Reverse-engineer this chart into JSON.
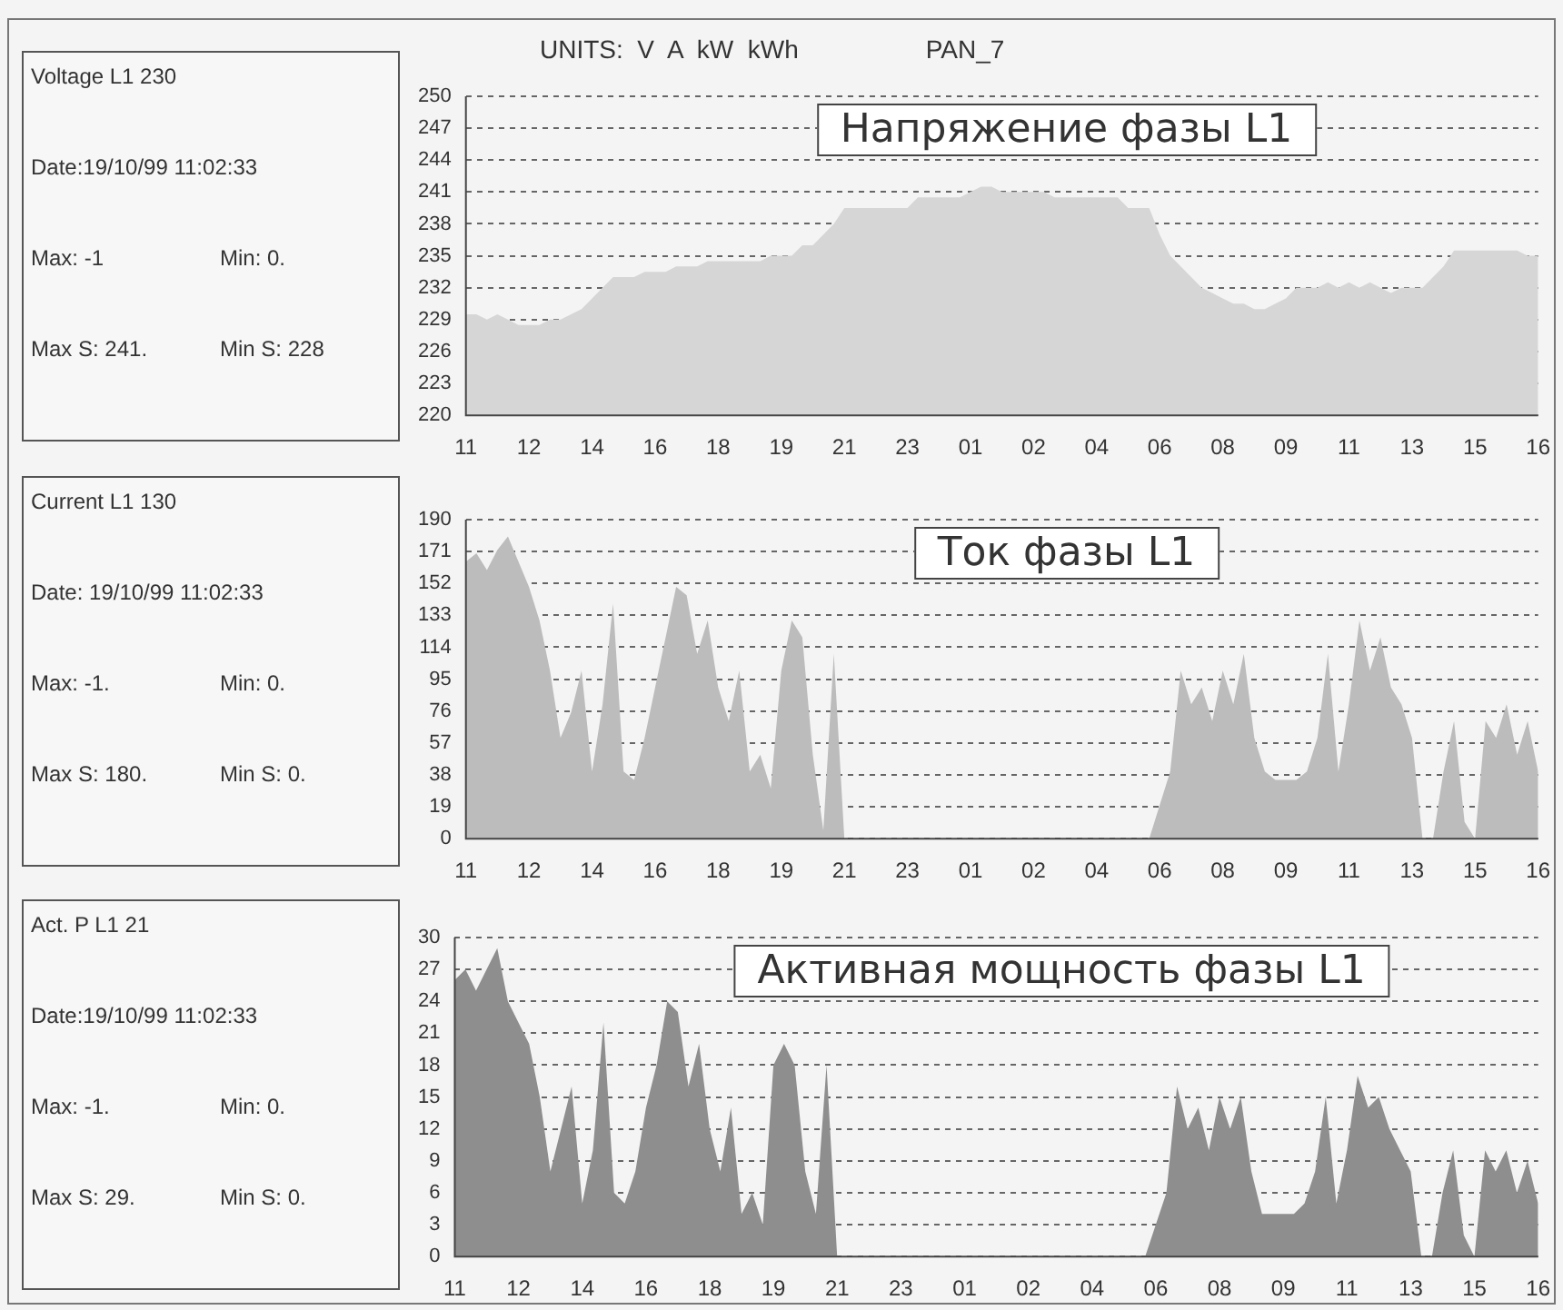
{
  "chart_data": [
    {
      "type": "other",
      "title": "Voltage L1 230",
      "annotations": [
        "Date:19/10/99  11:02:33",
        "Max: -1",
        "Min: 0.",
        "Max S: 241.",
        "Min S: 228"
      ]
    },
    {
      "type": "area",
      "title": "Напряжение фазы L1",
      "annotations": [
        "UNITS:  V  A  kW  kWh",
        "PAN_7"
      ],
      "categories": [
        "11",
        null,
        null,
        null,
        null,
        null,
        "12",
        null,
        null,
        null,
        null,
        null,
        "14",
        null,
        null,
        null,
        null,
        null,
        "16",
        null,
        null,
        null,
        null,
        null,
        "18",
        null,
        null,
        null,
        null,
        null,
        "19",
        null,
        null,
        null,
        null,
        null,
        "21",
        null,
        null,
        null,
        null,
        null,
        "23",
        null,
        null,
        null,
        null,
        null,
        "01",
        null,
        null,
        null,
        null,
        null,
        "02",
        null,
        null,
        null,
        null,
        null,
        "04",
        null,
        null,
        null,
        null,
        null,
        "06",
        null,
        null,
        null,
        null,
        null,
        "08",
        null,
        null,
        null,
        null,
        null,
        "09",
        null,
        null,
        null,
        null,
        null,
        "11",
        null,
        null,
        null,
        null,
        null,
        "13",
        null,
        null,
        null,
        null,
        null,
        "15",
        null,
        null,
        null,
        null,
        null,
        "16"
      ],
      "series": [
        {
          "color": "#d6d6d6",
          "values": [
            229.5,
            229.5,
            229,
            229.5,
            229,
            228.5,
            228.5,
            228.5,
            229,
            229,
            229.5,
            230,
            231,
            232,
            233,
            233,
            233,
            233.5,
            233.5,
            233.5,
            234,
            234,
            234,
            234.5,
            234.5,
            234.5,
            234.5,
            234.5,
            234.5,
            235,
            235,
            235,
            236,
            236,
            237,
            238,
            239.5,
            239.5,
            239.5,
            239.5,
            239.5,
            239.5,
            239.5,
            240.5,
            240.5,
            240.5,
            240.5,
            240.5,
            241,
            241.5,
            241.5,
            241,
            241,
            241,
            241,
            241,
            240.5,
            240.5,
            240.5,
            240.5,
            240.5,
            240.5,
            240.5,
            239.5,
            239.5,
            239.5,
            237,
            235,
            234,
            233,
            232,
            231.5,
            231,
            230.5,
            230.5,
            230,
            230,
            230.5,
            231,
            232,
            232,
            232,
            232.5,
            232,
            232.5,
            232,
            232.5,
            232,
            231.5,
            232,
            232,
            232,
            233,
            234,
            235.5,
            235.5,
            235.5,
            235.5,
            235.5,
            235.5,
            235.5,
            235,
            235
          ]
        }
      ],
      "ylim": [
        220,
        250
      ],
      "yticks": [
        220,
        223,
        226,
        229,
        232,
        235,
        238,
        241,
        244,
        247,
        250
      ],
      "grid": "y"
    },
    {
      "type": "other",
      "title": "Current L1 130",
      "annotations": [
        "Date: 19/10/99  11:02:33",
        "Max: -1.",
        "Min: 0.",
        "Max S: 180.",
        "Min S: 0."
      ]
    },
    {
      "type": "area",
      "title": "Ток фазы L1",
      "categories": [
        "11",
        null,
        null,
        null,
        null,
        null,
        "12",
        null,
        null,
        null,
        null,
        null,
        "14",
        null,
        null,
        null,
        null,
        null,
        "16",
        null,
        null,
        null,
        null,
        null,
        "18",
        null,
        null,
        null,
        null,
        null,
        "19",
        null,
        null,
        null,
        null,
        null,
        "21",
        null,
        null,
        null,
        null,
        null,
        "23",
        null,
        null,
        null,
        null,
        null,
        "01",
        null,
        null,
        null,
        null,
        null,
        "02",
        null,
        null,
        null,
        null,
        null,
        "04",
        null,
        null,
        null,
        null,
        null,
        "06",
        null,
        null,
        null,
        null,
        null,
        "08",
        null,
        null,
        null,
        null,
        null,
        "09",
        null,
        null,
        null,
        null,
        null,
        "11",
        null,
        null,
        null,
        null,
        null,
        "13",
        null,
        null,
        null,
        null,
        null,
        "15",
        null,
        null,
        null,
        null,
        null,
        "16"
      ],
      "series": [
        {
          "color": "#bcbcbc",
          "values": [
            165,
            170,
            160,
            172,
            180,
            165,
            150,
            130,
            100,
            60,
            75,
            100,
            40,
            80,
            140,
            40,
            35,
            60,
            90,
            120,
            150,
            145,
            110,
            130,
            90,
            70,
            100,
            40,
            50,
            30,
            100,
            130,
            120,
            50,
            5,
            110,
            0,
            0,
            0,
            0,
            0,
            0,
            0,
            0,
            0,
            0,
            0,
            0,
            0,
            0,
            0,
            0,
            0,
            0,
            0,
            0,
            0,
            0,
            0,
            0,
            0,
            0,
            0,
            0,
            0,
            0,
            20,
            40,
            100,
            80,
            90,
            70,
            100,
            80,
            110,
            60,
            40,
            35,
            35,
            35,
            40,
            60,
            110,
            40,
            80,
            130,
            100,
            120,
            90,
            80,
            60,
            0,
            0,
            40,
            70,
            10,
            0,
            70,
            60,
            80,
            50,
            70,
            40
          ]
        }
      ],
      "ylim": [
        0,
        190
      ],
      "yticks": [
        0,
        19,
        38,
        57,
        76,
        95,
        114,
        133,
        152,
        171,
        190
      ],
      "grid": "y"
    },
    {
      "type": "other",
      "title": "Act. P L1 21",
      "annotations": [
        "Date:19/10/99  11:02:33",
        "Max: -1.",
        "Min: 0.",
        "Max S: 29.",
        "Min S: 0."
      ]
    },
    {
      "type": "area",
      "title": "Активная мощность фазы L1",
      "categories": [
        "11",
        null,
        null,
        null,
        null,
        null,
        "12",
        null,
        null,
        null,
        null,
        null,
        "14",
        null,
        null,
        null,
        null,
        null,
        "16",
        null,
        null,
        null,
        null,
        null,
        "18",
        null,
        null,
        null,
        null,
        null,
        "19",
        null,
        null,
        null,
        null,
        null,
        "21",
        null,
        null,
        null,
        null,
        null,
        "23",
        null,
        null,
        null,
        null,
        null,
        "01",
        null,
        null,
        null,
        null,
        null,
        "02",
        null,
        null,
        null,
        null,
        null,
        "04",
        null,
        null,
        null,
        null,
        null,
        "06",
        null,
        null,
        null,
        null,
        null,
        "08",
        null,
        null,
        null,
        null,
        null,
        "09",
        null,
        null,
        null,
        null,
        null,
        "11",
        null,
        null,
        null,
        null,
        null,
        "13",
        null,
        null,
        null,
        null,
        null,
        "15",
        null,
        null,
        null,
        null,
        null,
        "16"
      ],
      "series": [
        {
          "color": "#8e8e8e",
          "values": [
            26,
            27,
            25,
            27,
            29,
            24,
            22,
            20,
            15,
            8,
            12,
            16,
            5,
            10,
            22,
            6,
            5,
            8,
            14,
            18,
            24,
            23,
            16,
            20,
            12,
            8,
            14,
            4,
            6,
            3,
            18,
            20,
            18,
            8,
            4,
            18,
            0,
            0,
            0,
            0,
            0,
            0,
            0,
            0,
            0,
            0,
            0,
            0,
            0,
            0,
            0,
            0,
            0,
            0,
            0,
            0,
            0,
            0,
            0,
            0,
            0,
            0,
            0,
            0,
            0,
            0,
            3,
            6,
            16,
            12,
            14,
            10,
            15,
            12,
            15,
            8,
            4,
            4,
            4,
            4,
            5,
            8,
            15,
            5,
            10,
            17,
            14,
            15,
            12,
            10,
            8,
            0,
            0,
            6,
            10,
            2,
            0,
            10,
            8,
            10,
            6,
            9,
            5
          ]
        }
      ],
      "ylim": [
        0,
        30
      ],
      "yticks": [
        0,
        3,
        6,
        9,
        12,
        15,
        18,
        21,
        24,
        27,
        30
      ],
      "grid": "y"
    }
  ]
}
